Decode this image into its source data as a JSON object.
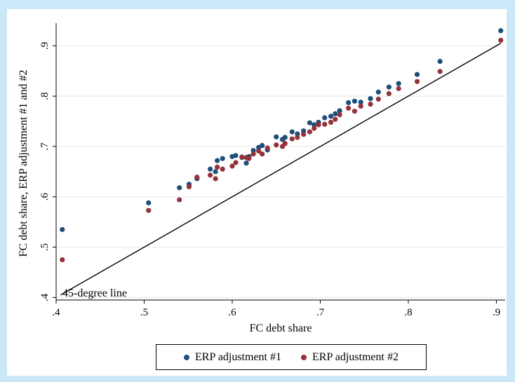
{
  "chart_data": {
    "type": "scatter",
    "xlabel": "FC debt share",
    "ylabel": "FC debt share, ERP adjustment #1 and #2",
    "xlim": [
      0.4,
      0.91
    ],
    "ylim": [
      0.395,
      0.945
    ],
    "xticks": [
      ".4",
      ".5",
      ".6",
      ".7",
      ".8",
      ".9"
    ],
    "yticks": [
      ".4",
      ".5",
      ".6",
      ".7",
      ".8",
      ".9"
    ],
    "grid": "horizontal",
    "legend_position": "bottom",
    "annotation": "45-degree line",
    "reference_line": {
      "x": [
        0.405,
        0.905
      ],
      "y": [
        0.405,
        0.905
      ]
    },
    "series": [
      {
        "name": "ERP adjustment #1",
        "color": "#1f4e79",
        "points": [
          [
            0.407,
            0.535
          ],
          [
            0.505,
            0.588
          ],
          [
            0.54,
            0.618
          ],
          [
            0.551,
            0.625
          ],
          [
            0.56,
            0.636
          ],
          [
            0.575,
            0.655
          ],
          [
            0.581,
            0.65
          ],
          [
            0.583,
            0.672
          ],
          [
            0.589,
            0.676
          ],
          [
            0.6,
            0.68
          ],
          [
            0.604,
            0.682
          ],
          [
            0.611,
            0.678
          ],
          [
            0.616,
            0.667
          ],
          [
            0.619,
            0.68
          ],
          [
            0.624,
            0.692
          ],
          [
            0.63,
            0.698
          ],
          [
            0.634,
            0.702
          ],
          [
            0.64,
            0.693
          ],
          [
            0.65,
            0.719
          ],
          [
            0.657,
            0.714
          ],
          [
            0.66,
            0.718
          ],
          [
            0.668,
            0.729
          ],
          [
            0.674,
            0.725
          ],
          [
            0.681,
            0.731
          ],
          [
            0.688,
            0.747
          ],
          [
            0.693,
            0.743
          ],
          [
            0.698,
            0.748
          ],
          [
            0.705,
            0.757
          ],
          [
            0.712,
            0.76
          ],
          [
            0.717,
            0.765
          ],
          [
            0.722,
            0.771
          ],
          [
            0.732,
            0.787
          ],
          [
            0.739,
            0.79
          ],
          [
            0.746,
            0.788
          ],
          [
            0.757,
            0.795
          ],
          [
            0.766,
            0.808
          ],
          [
            0.778,
            0.818
          ],
          [
            0.789,
            0.825
          ],
          [
            0.81,
            0.843
          ],
          [
            0.836,
            0.869
          ],
          [
            0.905,
            0.93
          ]
        ]
      },
      {
        "name": "ERP adjustment #2",
        "color": "#94313b",
        "points": [
          [
            0.407,
            0.475
          ],
          [
            0.505,
            0.573
          ],
          [
            0.54,
            0.594
          ],
          [
            0.551,
            0.62
          ],
          [
            0.56,
            0.639
          ],
          [
            0.575,
            0.643
          ],
          [
            0.581,
            0.636
          ],
          [
            0.583,
            0.659
          ],
          [
            0.589,
            0.655
          ],
          [
            0.6,
            0.661
          ],
          [
            0.604,
            0.668
          ],
          [
            0.611,
            0.679
          ],
          [
            0.616,
            0.678
          ],
          [
            0.619,
            0.676
          ],
          [
            0.624,
            0.685
          ],
          [
            0.63,
            0.691
          ],
          [
            0.634,
            0.685
          ],
          [
            0.64,
            0.697
          ],
          [
            0.65,
            0.703
          ],
          [
            0.657,
            0.7
          ],
          [
            0.66,
            0.706
          ],
          [
            0.668,
            0.715
          ],
          [
            0.674,
            0.718
          ],
          [
            0.681,
            0.724
          ],
          [
            0.688,
            0.729
          ],
          [
            0.693,
            0.736
          ],
          [
            0.698,
            0.743
          ],
          [
            0.705,
            0.744
          ],
          [
            0.712,
            0.748
          ],
          [
            0.717,
            0.754
          ],
          [
            0.722,
            0.763
          ],
          [
            0.732,
            0.776
          ],
          [
            0.739,
            0.77
          ],
          [
            0.746,
            0.78
          ],
          [
            0.757,
            0.784
          ],
          [
            0.766,
            0.794
          ],
          [
            0.778,
            0.805
          ],
          [
            0.789,
            0.815
          ],
          [
            0.81,
            0.829
          ],
          [
            0.836,
            0.849
          ],
          [
            0.905,
            0.911
          ]
        ]
      }
    ]
  }
}
